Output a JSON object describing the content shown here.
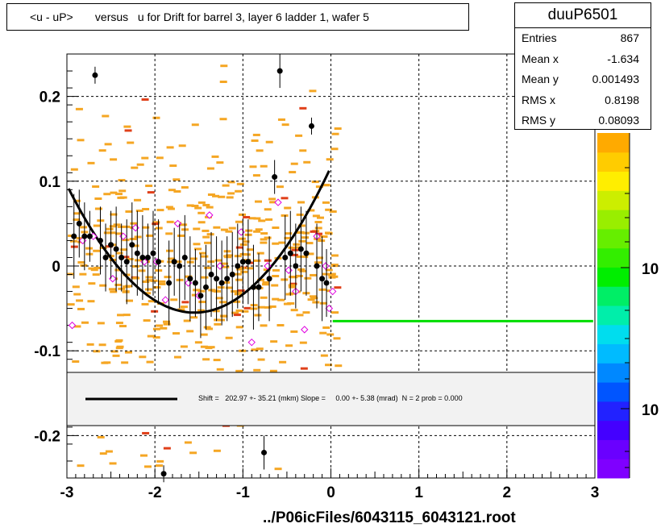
{
  "title": "<u - uP>       versus   u for Drift for barrel 3, layer 6 ladder 1, wafer 5",
  "stats": {
    "name": "duuP6501",
    "rows": [
      {
        "label": "Entries",
        "value": "867"
      },
      {
        "label": "Mean x",
        "value": "-1.634"
      },
      {
        "label": "Mean y",
        "value": "0.001493"
      },
      {
        "label": "RMS x",
        "value": "0.8198"
      },
      {
        "label": "RMS y",
        "value": "0.08093"
      }
    ]
  },
  "footer": "../P06icFiles/6043115_6043121.root",
  "fit_text": "Shift =   202.97 +- 35.21 (mkm) Slope =     0.00 +- 5.38 (mrad)  N = 2 prob = 0.000",
  "colors": {
    "hist_cell": "#f5a623",
    "hist_cell_dense": "#e0401a",
    "profile_marker": "#000000",
    "open_marker": "#e000e0",
    "fit_curve": "#000000",
    "green_line": "#00dd00"
  },
  "chart_data": {
    "type": "scatter",
    "xlim": [
      -3,
      3
    ],
    "ylim": [
      -0.25,
      0.25
    ],
    "x_ticks": [
      "-3",
      "-2",
      "-1",
      "0",
      "1",
      "2",
      "3"
    ],
    "y_ticks": [
      "-0.2",
      "-0.1",
      "0",
      "0.1",
      "0.2"
    ],
    "colorbar_labels": [
      "10",
      "10"
    ],
    "grid": true,
    "profile_points": [
      {
        "x": -2.92,
        "y": 0.035,
        "e": 0.05
      },
      {
        "x": -2.86,
        "y": 0.05,
        "e": 0.04
      },
      {
        "x": -2.8,
        "y": 0.035,
        "e": 0.04
      },
      {
        "x": -2.74,
        "y": 0.035,
        "e": 0.03
      },
      {
        "x": -2.68,
        "y": 0.225,
        "e": 0.01
      },
      {
        "x": -2.62,
        "y": 0.03,
        "e": 0.04
      },
      {
        "x": -2.56,
        "y": 0.01,
        "e": 0.04
      },
      {
        "x": -2.5,
        "y": 0.025,
        "e": 0.04
      },
      {
        "x": -2.44,
        "y": 0.02,
        "e": 0.05
      },
      {
        "x": -2.38,
        "y": 0.01,
        "e": 0.04
      },
      {
        "x": -2.32,
        "y": 0.005,
        "e": 0.05
      },
      {
        "x": -2.26,
        "y": 0.025,
        "e": 0.05
      },
      {
        "x": -2.2,
        "y": 0.015,
        "e": 0.05
      },
      {
        "x": -2.14,
        "y": 0.01,
        "e": 0.05
      },
      {
        "x": -2.08,
        "y": 0.01,
        "e": 0.04
      },
      {
        "x": -2.02,
        "y": 0.015,
        "e": 0.05
      },
      {
        "x": -1.96,
        "y": 0.005,
        "e": 0.05
      },
      {
        "x": -1.9,
        "y": -0.245,
        "e": 0.01
      },
      {
        "x": -1.84,
        "y": -0.02,
        "e": 0.05
      },
      {
        "x": -1.78,
        "y": 0.005,
        "e": 0.04
      },
      {
        "x": -1.72,
        "y": 0.0,
        "e": 0.05
      },
      {
        "x": -1.66,
        "y": 0.01,
        "e": 0.05
      },
      {
        "x": -1.6,
        "y": -0.015,
        "e": 0.05
      },
      {
        "x": -1.54,
        "y": -0.02,
        "e": 0.04
      },
      {
        "x": -1.48,
        "y": -0.035,
        "e": 0.05
      },
      {
        "x": -1.42,
        "y": -0.025,
        "e": 0.05
      },
      {
        "x": -1.36,
        "y": -0.01,
        "e": 0.05
      },
      {
        "x": -1.3,
        "y": -0.015,
        "e": 0.05
      },
      {
        "x": -1.24,
        "y": -0.02,
        "e": 0.05
      },
      {
        "x": -1.18,
        "y": -0.015,
        "e": 0.05
      },
      {
        "x": -1.12,
        "y": -0.01,
        "e": 0.05
      },
      {
        "x": -1.06,
        "y": 0.0,
        "e": 0.05
      },
      {
        "x": -1.0,
        "y": 0.005,
        "e": 0.05
      },
      {
        "x": -0.94,
        "y": 0.005,
        "e": 0.05
      },
      {
        "x": -0.88,
        "y": -0.025,
        "e": 0.05
      },
      {
        "x": -0.82,
        "y": -0.025,
        "e": 0.04
      },
      {
        "x": -0.76,
        "y": -0.22,
        "e": 0.02
      },
      {
        "x": -0.7,
        "y": -0.015,
        "e": 0.05
      },
      {
        "x": -0.64,
        "y": 0.105,
        "e": 0.02
      },
      {
        "x": -0.58,
        "y": 0.23,
        "e": 0.02
      },
      {
        "x": -0.52,
        "y": 0.01,
        "e": 0.05
      },
      {
        "x": -0.46,
        "y": 0.015,
        "e": 0.05
      },
      {
        "x": -0.4,
        "y": 0.0,
        "e": 0.05
      },
      {
        "x": -0.34,
        "y": 0.02,
        "e": 0.05
      },
      {
        "x": -0.28,
        "y": 0.015,
        "e": 0.05
      },
      {
        "x": -0.22,
        "y": 0.165,
        "e": 0.01
      },
      {
        "x": -0.16,
        "y": 0.0,
        "e": 0.05
      },
      {
        "x": -0.1,
        "y": -0.015,
        "e": 0.05
      },
      {
        "x": -0.05,
        "y": -0.02,
        "e": 0.04
      }
    ],
    "open_points": [
      {
        "x": -2.94,
        "y": -0.07
      },
      {
        "x": -2.82,
        "y": 0.03
      },
      {
        "x": -2.7,
        "y": 0.035
      },
      {
        "x": -2.48,
        "y": -0.015
      },
      {
        "x": -2.36,
        "y": 0.035
      },
      {
        "x": -2.22,
        "y": 0.045
      },
      {
        "x": -2.12,
        "y": 0.005
      },
      {
        "x": -1.98,
        "y": 0.005
      },
      {
        "x": -1.88,
        "y": -0.04
      },
      {
        "x": -1.74,
        "y": 0.05
      },
      {
        "x": -1.62,
        "y": -0.02
      },
      {
        "x": -1.5,
        "y": -0.035
      },
      {
        "x": -1.38,
        "y": 0.06
      },
      {
        "x": -1.26,
        "y": 0.0
      },
      {
        "x": -1.02,
        "y": 0.04
      },
      {
        "x": -0.9,
        "y": -0.09
      },
      {
        "x": -0.72,
        "y": 0.0
      },
      {
        "x": -0.6,
        "y": 0.075
      },
      {
        "x": -0.48,
        "y": -0.005
      },
      {
        "x": -0.4,
        "y": -0.03
      },
      {
        "x": -0.3,
        "y": -0.075
      },
      {
        "x": -0.16,
        "y": 0.035
      },
      {
        "x": -0.06,
        "y": 0.0
      },
      {
        "x": -0.02,
        "y": -0.05
      },
      {
        "x": 0.02,
        "y": -0.03
      }
    ],
    "fit_curve": {
      "x0": -1.55,
      "y0": -0.055,
      "a": 0.0715,
      "xmin": -2.98,
      "xmax": -0.02
    },
    "green_line": {
      "x1": 0.02,
      "x2": 2.98,
      "y": -0.065
    }
  }
}
